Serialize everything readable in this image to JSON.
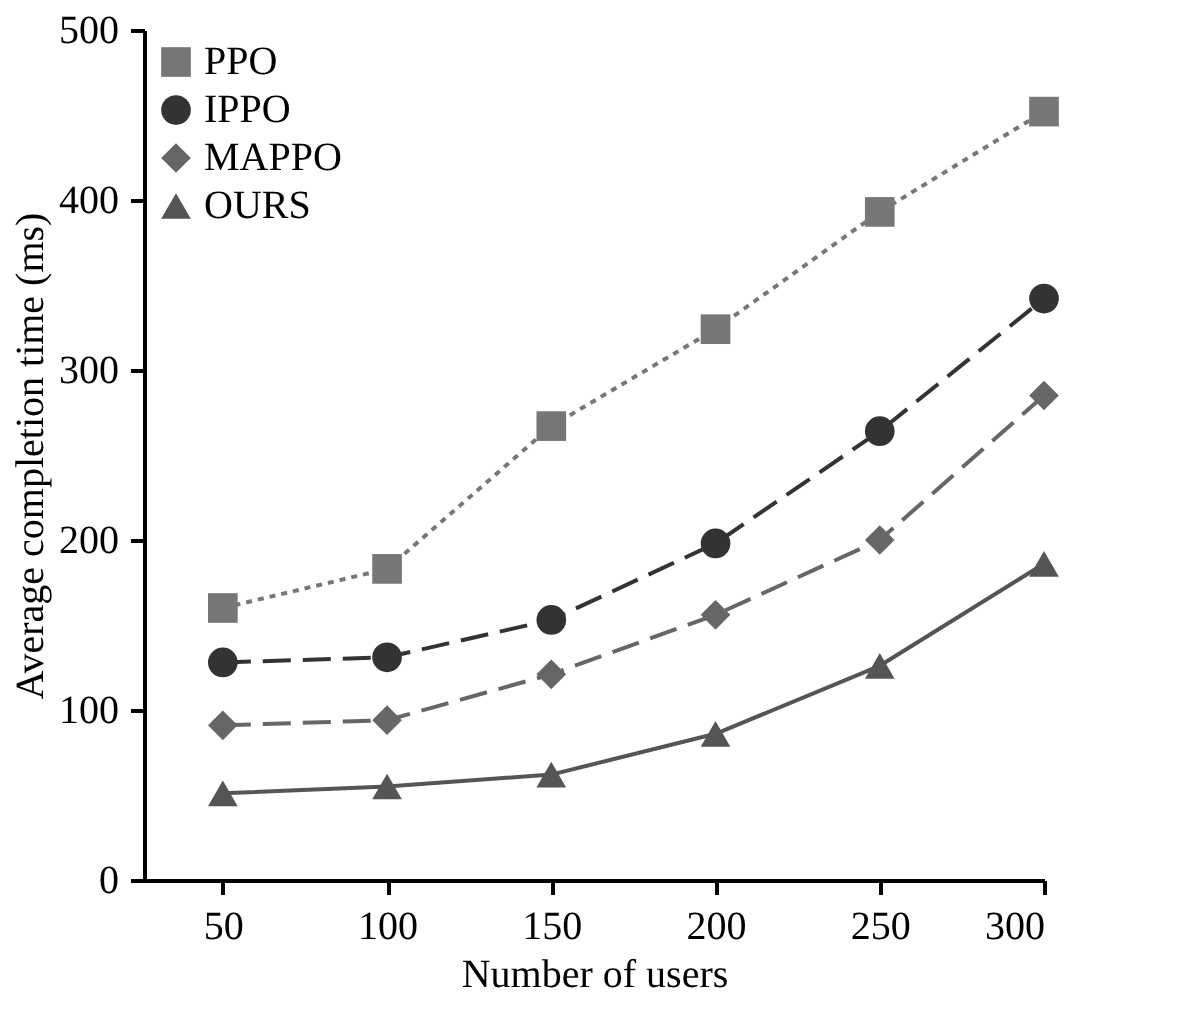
{
  "chart_data": {
    "type": "line",
    "xlabel": "Number of users",
    "ylabel": "Average completion time (ms)",
    "x": [
      50,
      100,
      150,
      200,
      250,
      300
    ],
    "series": [
      {
        "name": "PPO",
        "color": "#777777",
        "marker": "square",
        "line_style": "dotted",
        "values": [
          160,
          183,
          267,
          324,
          393,
          452
        ]
      },
      {
        "name": "IPPO",
        "color": "#333333",
        "marker": "circle",
        "line_style": "dashed",
        "values": [
          128,
          131,
          153,
          198,
          264,
          342
        ]
      },
      {
        "name": "MAPPO",
        "color": "#666666",
        "marker": "diamond",
        "line_style": "dashed",
        "values": [
          91,
          94,
          121,
          156,
          200,
          285
        ]
      },
      {
        "name": "OURS",
        "color": "#555555",
        "marker": "triangle",
        "line_style": "solid",
        "values": [
          51,
          55,
          62,
          86,
          126,
          186
        ]
      }
    ],
    "xlim": [
      26,
      300
    ],
    "xticks": [
      50,
      100,
      150,
      200,
      250,
      300
    ],
    "ylim": [
      0,
      500
    ],
    "yticks": [
      0,
      100,
      200,
      300,
      400,
      500
    ],
    "grid": false,
    "legend": "top left"
  }
}
